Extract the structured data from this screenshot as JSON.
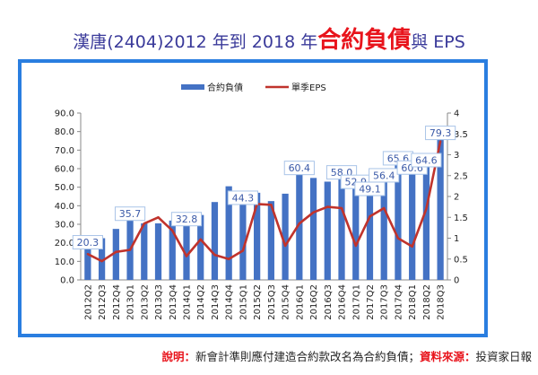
{
  "title": {
    "prefix": "漢唐(2404)2012 年到 2018 年",
    "highlight": "合約負債",
    "suffix": "與 EPS"
  },
  "footer": {
    "note_key": "說明：",
    "note_text": "新會計準則應付建造合約款改名為合約負債；",
    "source_key": "資料來源：",
    "source_text": "投資家日報"
  },
  "colors": {
    "bar": "#4472c4",
    "line": "#c0332c",
    "label_border": "#a9c4e8",
    "frame": "#2a7ee0"
  },
  "chart_data": {
    "type": "bar",
    "categories": [
      "2012Q2",
      "2012Q3",
      "2012Q4",
      "2013Q1",
      "2013Q2",
      "2013Q3",
      "2013Q4",
      "2014Q1",
      "2014Q2",
      "2014Q3",
      "2014Q4",
      "2015Q1",
      "2015Q2",
      "2015Q3",
      "2015Q4",
      "2016Q1",
      "2016Q2",
      "2016Q3",
      "2016Q4",
      "2017Q1",
      "2017Q2",
      "2017Q3",
      "2017Q4",
      "2018Q1",
      "2018Q2",
      "2018Q3"
    ],
    "series": [
      {
        "name": "合約負債",
        "type": "bar",
        "axis": "left",
        "values": [
          20.3,
          22.5,
          27.5,
          35.7,
          30.5,
          30.5,
          32.0,
          32.8,
          35.0,
          42.0,
          50.5,
          44.3,
          47.0,
          42.5,
          46.5,
          60.4,
          55.0,
          53.0,
          58.0,
          52.9,
          49.1,
          56.4,
          65.6,
          60.6,
          64.6,
          79.3
        ]
      },
      {
        "name": "單季EPS",
        "type": "line",
        "axis": "right",
        "values": [
          0.62,
          0.45,
          0.67,
          0.72,
          1.35,
          1.5,
          1.18,
          0.57,
          0.97,
          0.6,
          0.5,
          0.7,
          1.82,
          1.8,
          0.82,
          1.35,
          1.62,
          1.75,
          1.72,
          0.82,
          1.52,
          1.72,
          1.0,
          0.8,
          1.7,
          3.32
        ]
      }
    ],
    "data_labels": [
      {
        "index": 0,
        "text": "20.3"
      },
      {
        "index": 3,
        "text": "35.7"
      },
      {
        "index": 7,
        "text": "32.8"
      },
      {
        "index": 11,
        "text": "44.3"
      },
      {
        "index": 15,
        "text": "60.4"
      },
      {
        "index": 18,
        "text": "58.0"
      },
      {
        "index": 19,
        "text": "52.9"
      },
      {
        "index": 20,
        "text": "49.1"
      },
      {
        "index": 21,
        "text": "56.4"
      },
      {
        "index": 22,
        "text": "65.6"
      },
      {
        "index": 23,
        "text": "60.6"
      },
      {
        "index": 24,
        "text": "64.6"
      },
      {
        "index": 25,
        "text": "79.3"
      }
    ],
    "y_left": {
      "min": 0,
      "max": 90,
      "step": 10,
      "ticks": [
        "0.0",
        "10.0",
        "20.0",
        "30.0",
        "40.0",
        "50.0",
        "60.0",
        "70.0",
        "80.0",
        "90.0"
      ]
    },
    "y_right": {
      "min": 0,
      "max": 4,
      "step": 0.5,
      "ticks": [
        "0",
        "0.5",
        "1",
        "1.5",
        "2",
        "2.5",
        "3",
        "3.5",
        "4"
      ]
    },
    "grid": false,
    "legend_position": "top-center"
  }
}
